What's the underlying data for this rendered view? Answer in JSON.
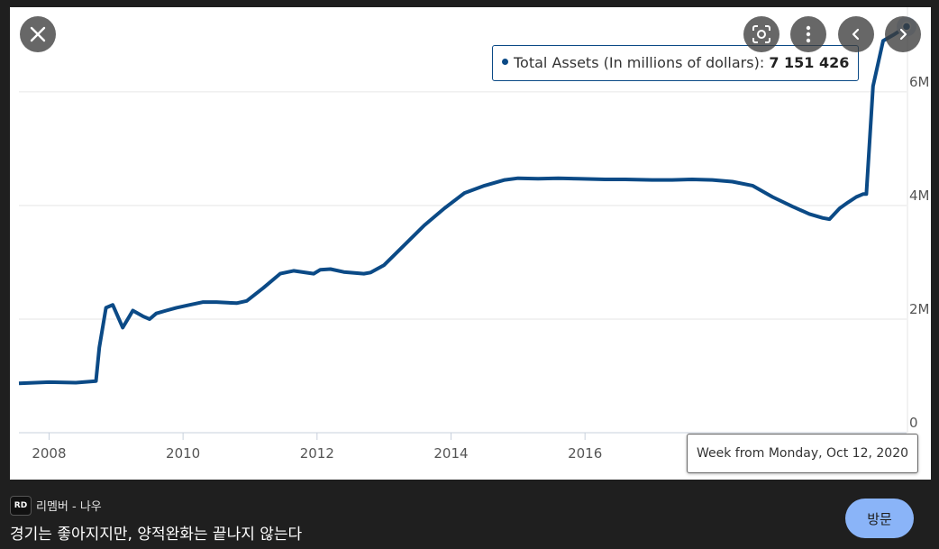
{
  "controls": {
    "close_icon": "close-icon",
    "lens_icon": "lens-icon",
    "more_icon": "more-icon",
    "prev_icon": "chevron-left-icon",
    "next_icon": "chevron-right-icon"
  },
  "tooltip": {
    "series_label": "Total Assets (In millions of dollars):",
    "value": "7 151 426"
  },
  "x_tooltip": "Week from Monday, Oct 12, 2020",
  "source": {
    "logo_text": "RD",
    "name": "리멤버 - 나우"
  },
  "article_title": "경기는 좋아지지만, 양적완화는 끝나지 않는다",
  "visit_label": "방문",
  "colors": {
    "line": "#0b4a86",
    "background": "#1f1f1f",
    "visit_button": "#8ab4f8"
  },
  "chart_data": {
    "type": "line",
    "title": "",
    "xlabel": "",
    "ylabel": "",
    "x_ticks": [
      "2008",
      "2010",
      "2012",
      "2014",
      "2016"
    ],
    "x_tick_values": [
      2008,
      2010,
      2012,
      2014,
      2016
    ],
    "y_ticks": [
      "0",
      "2M",
      "4M",
      "6M"
    ],
    "y_tick_values": [
      0,
      2000000,
      4000000,
      6000000
    ],
    "ylim": [
      0,
      7300000
    ],
    "xlim": [
      2007.55,
      2020.8
    ],
    "grid": true,
    "series": [
      {
        "x": [
          2007.55,
          2008.0,
          2008.4,
          2008.7,
          2008.75,
          2008.85,
          2008.95,
          2009.1,
          2009.2,
          2009.25,
          2009.4,
          2009.5,
          2009.6,
          2009.75,
          2009.9,
          2010.1,
          2010.3,
          2010.5,
          2010.8,
          2010.95,
          2011.2,
          2011.45,
          2011.65,
          2011.95,
          2012.05,
          2012.2,
          2012.4,
          2012.7,
          2012.8,
          2013.0,
          2013.3,
          2013.6,
          2013.9,
          2014.2,
          2014.5,
          2014.8,
          2015.0,
          2015.3,
          2015.6,
          2015.9,
          2016.3,
          2016.6,
          2017.0,
          2017.3,
          2017.6,
          2017.9,
          2018.2,
          2018.5,
          2018.8,
          2019.1,
          2019.35,
          2019.55,
          2019.65,
          2019.8,
          2019.92,
          2020.05,
          2020.15,
          2020.2,
          2020.3,
          2020.45,
          2020.6,
          2020.8
        ],
        "y": [
          870000,
          890000,
          880000,
          910000,
          1500000,
          2200000,
          2250000,
          1850000,
          2050000,
          2150000,
          2050000,
          2000000,
          2100000,
          2150000,
          2200000,
          2250000,
          2300000,
          2300000,
          2280000,
          2320000,
          2550000,
          2800000,
          2850000,
          2800000,
          2870000,
          2880000,
          2830000,
          2800000,
          2820000,
          2950000,
          3300000,
          3650000,
          3950000,
          4220000,
          4350000,
          4450000,
          4480000,
          4470000,
          4480000,
          4470000,
          4460000,
          4460000,
          4450000,
          4450000,
          4460000,
          4450000,
          4420000,
          4350000,
          4150000,
          3980000,
          3850000,
          3780000,
          3760000,
          3950000,
          4050000,
          4150000,
          4200000,
          4200000,
          6100000,
          6900000,
          7000000,
          7151426
        ]
      }
    ]
  }
}
